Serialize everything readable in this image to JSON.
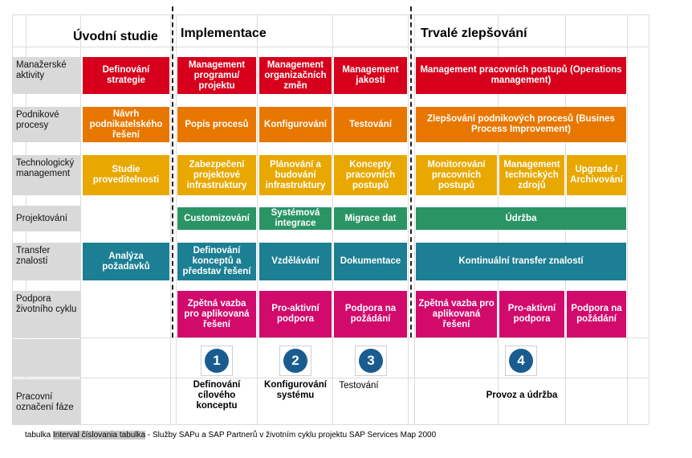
{
  "phases": {
    "uvodni": "Úvodní studie",
    "implementace": "Implementace",
    "trvale": "Trvalé zlepšování"
  },
  "rows": [
    {
      "label": "Manažerské aktivity",
      "color": "#d6001c"
    },
    {
      "label": "Podnikové procesy",
      "color": "#e87700"
    },
    {
      "label": "Technologický management",
      "color": "#e8a800"
    },
    {
      "label": "Projektování",
      "color": "#2a9465"
    },
    {
      "label": "Transfer znalostí",
      "color": "#1c7f93"
    },
    {
      "label": "Podpora životního cyklu",
      "color": "#d10a6c"
    },
    {
      "label": "",
      "color": ""
    },
    {
      "label": "Pracovní označení fáze",
      "color": ""
    }
  ],
  "cells": {
    "r1_study": "Definování strategie",
    "r1_impl1": "Management programu/ projektu",
    "r1_impl2": "Management organizačních změn",
    "r1_impl3": "Management jakosti",
    "r1_improve": "Management pracovních postupů (Operations management)",
    "r2_study": "Návrh podnikatelského řešení",
    "r2_impl1": "Popis procesů",
    "r2_impl2": "Konfigurování",
    "r2_impl3": "Testování",
    "r2_improve": "Zlepšování podnikových procesů (Busines Process Improvement)",
    "r3_study": "Studie proveditelnosti",
    "r3_impl1": "Zabezpečení projektové infrastruktury",
    "r3_impl2": "Plánování a budování infrastruktury",
    "r3_impl3": "Koncepty pracovních postupů",
    "r3_imp1": "Monitorování pracovních postupů",
    "r3_imp2": "Management technických zdrojů",
    "r3_imp3": "Upgrade / Archivování",
    "r4_impl1": "Customizování",
    "r4_impl2": "Systémová integrace",
    "r4_impl3": "Migrace dat",
    "r4_improve": "Údržba",
    "r5_study": "Analýza požadavků",
    "r5_impl1": "Definování konceptů a představ řešení",
    "r5_impl2": "Vzdělávání",
    "r5_impl3": "Dokumentace",
    "r5_improve": "Kontinuální transfer znalostí",
    "r6_impl1": "Zpětná vazba pro aplikovaná řešení",
    "r6_impl2": "Pro-aktivní podpora",
    "r6_impl3": "Podpora na požádání",
    "r6_imp1": "Zpětná vazba pro aplikovaná řešení",
    "r6_imp2": "Pro-aktivní podpora",
    "r6_imp3": "Podpora na požádání"
  },
  "steps": [
    {
      "number": "1",
      "label": "Definování cílového konceptu"
    },
    {
      "number": "2",
      "label": "Konfigurování systému"
    },
    {
      "number": "3",
      "label": "Testování"
    },
    {
      "number": "4",
      "label": "Provoz a údržba"
    }
  ],
  "caption": {
    "prefix": "tabulka ",
    "highlight": "Interval číslovania tabulka",
    "suffix": " - Služby SAPu a SAP Partnerů v životním cyklu projektu SAP Services Map 2000"
  }
}
